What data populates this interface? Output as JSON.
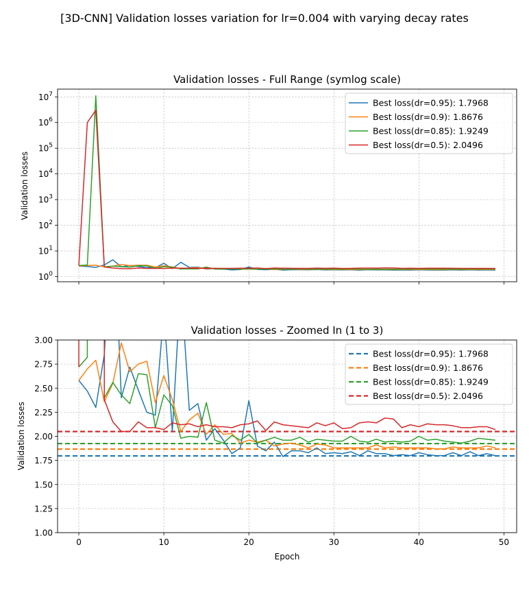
{
  "suptitle": "[3D-CNN] Validation losses variation for lr=0.004 with varying decay rates",
  "chart_data": [
    {
      "type": "line",
      "title": "Validation losses - Full Range (symlog scale)",
      "xlabel": "",
      "ylabel": "Validation losses",
      "yscale": "symlog",
      "xlim": [
        -2.5,
        51.5
      ],
      "ylim": [
        0.8,
        20000000
      ],
      "xticks": [
        0,
        10,
        20,
        30,
        40,
        50
      ],
      "xtick_labels_visible": false,
      "yticks": [
        1,
        10,
        100,
        1000,
        10000,
        100000,
        1000000,
        10000000
      ],
      "ytick_labels": [
        {
          "base": "10",
          "exp": "0"
        },
        {
          "base": "10",
          "exp": "1"
        },
        {
          "base": "10",
          "exp": "2"
        },
        {
          "base": "10",
          "exp": "3"
        },
        {
          "base": "10",
          "exp": "4"
        },
        {
          "base": "10",
          "exp": "5"
        },
        {
          "base": "10",
          "exp": "6"
        },
        {
          "base": "10",
          "exp": "7"
        }
      ],
      "grid": true,
      "legend": "top-right",
      "legend_entries": [
        "Best loss(dr=0.95): 1.7968",
        "Best loss(dr=0.9): 1.8676",
        "Best loss(dr=0.85): 1.9249",
        "Best loss(dr=0.5): 2.0496"
      ],
      "series": [
        {
          "legend_index": 0,
          "color": "#1f77b4",
          "style": "solid",
          "values": [
            2.58,
            2.47,
            2.3,
            2.85,
            4.5,
            2.4,
            2.72,
            2.48,
            2.25,
            2.22,
            3.3,
            2.05,
            3.6,
            2.27,
            2.34,
            1.96,
            2.08,
            1.96,
            1.82,
            1.88,
            2.37,
            1.9,
            1.85,
            1.94,
            1.79,
            1.85,
            1.85,
            1.83,
            1.88,
            1.82,
            1.83,
            1.82,
            1.84,
            1.8,
            1.85,
            1.82,
            1.82,
            1.8,
            1.81,
            1.8,
            1.83,
            1.81,
            1.8,
            1.8,
            1.83,
            1.8,
            1.84,
            1.8,
            1.82,
            1.8
          ]
        },
        {
          "legend_index": 1,
          "color": "#ff7f0e",
          "style": "solid",
          "values": [
            2.58,
            2.7,
            2.79,
            2.36,
            2.55,
            2.97,
            2.67,
            2.75,
            2.78,
            2.35,
            2.63,
            2.38,
            2.05,
            2.17,
            2.24,
            2.02,
            2.12,
            2.02,
            2.03,
            1.93,
            1.96,
            1.94,
            1.96,
            1.9,
            1.92,
            1.93,
            1.91,
            1.88,
            1.92,
            1.91,
            1.88,
            1.88,
            1.88,
            1.88,
            1.88,
            1.91,
            1.88,
            1.89,
            1.88,
            1.88,
            1.88,
            1.88,
            1.87,
            1.87,
            1.89,
            1.88,
            1.88,
            1.88,
            1.9,
            1.88
          ]
        },
        {
          "legend_index": 2,
          "color": "#2ca02c",
          "style": "solid",
          "values": [
            2.72,
            2.82,
            11000000,
            2.4,
            2.56,
            2.43,
            2.34,
            2.65,
            2.64,
            2.09,
            2.43,
            2.32,
            1.98,
            2.0,
            1.99,
            2.35,
            1.96,
            1.93,
            2.01,
            1.96,
            2.02,
            1.93,
            1.96,
            1.99,
            1.96,
            1.96,
            1.99,
            1.94,
            1.97,
            1.96,
            1.95,
            1.95,
            2.0,
            1.95,
            1.94,
            1.97,
            1.94,
            1.95,
            1.94,
            1.95,
            2.0,
            1.96,
            1.97,
            1.95,
            1.94,
            1.93,
            1.95,
            1.98,
            1.97,
            1.96
          ]
        },
        {
          "legend_index": 3,
          "color": "#d62728",
          "style": "solid",
          "values": [
            2.72,
            1000000,
            3000000,
            2.38,
            2.15,
            2.05,
            2.05,
            2.15,
            2.09,
            2.09,
            2.07,
            2.14,
            2.12,
            2.13,
            2.1,
            2.12,
            2.1,
            2.1,
            2.09,
            2.12,
            2.13,
            2.16,
            2.06,
            2.15,
            2.12,
            2.11,
            2.1,
            2.09,
            2.14,
            2.11,
            2.14,
            2.08,
            2.09,
            2.14,
            2.15,
            2.14,
            2.19,
            2.18,
            2.09,
            2.12,
            2.1,
            2.13,
            2.12,
            2.12,
            2.11,
            2.09,
            2.09,
            2.1,
            2.1,
            2.07
          ]
        }
      ]
    },
    {
      "type": "line",
      "title": "Validation losses - Zoomed In (1 to 3)",
      "xlabel": "Epoch",
      "ylabel": "Validation losses",
      "xlim": [
        -2.5,
        51.5
      ],
      "ylim": [
        1.0,
        3.0
      ],
      "xticks": [
        0,
        10,
        20,
        30,
        40,
        50
      ],
      "yticks": [
        1.0,
        1.25,
        1.5,
        1.75,
        2.0,
        2.25,
        2.5,
        2.75,
        3.0
      ],
      "ytick_labels": [
        "1.00",
        "1.25",
        "1.50",
        "1.75",
        "2.00",
        "2.25",
        "2.50",
        "2.75",
        "3.00"
      ],
      "grid": true,
      "legend": "top-right",
      "legend_entries": [
        "Best loss(dr=0.95): 1.7968",
        "Best loss(dr=0.9): 1.8676",
        "Best loss(dr=0.85): 1.9249",
        "Best loss(dr=0.5): 2.0496"
      ],
      "legend_style": "dashed",
      "best_lines": [
        {
          "color": "#1f77b4",
          "value": 1.7968
        },
        {
          "color": "#ff7f0e",
          "value": 1.8676
        },
        {
          "color": "#2ca02c",
          "value": 1.9249
        },
        {
          "color": "#d62728",
          "value": 2.0496
        }
      ],
      "series_source": "same as Full Range series"
    }
  ]
}
